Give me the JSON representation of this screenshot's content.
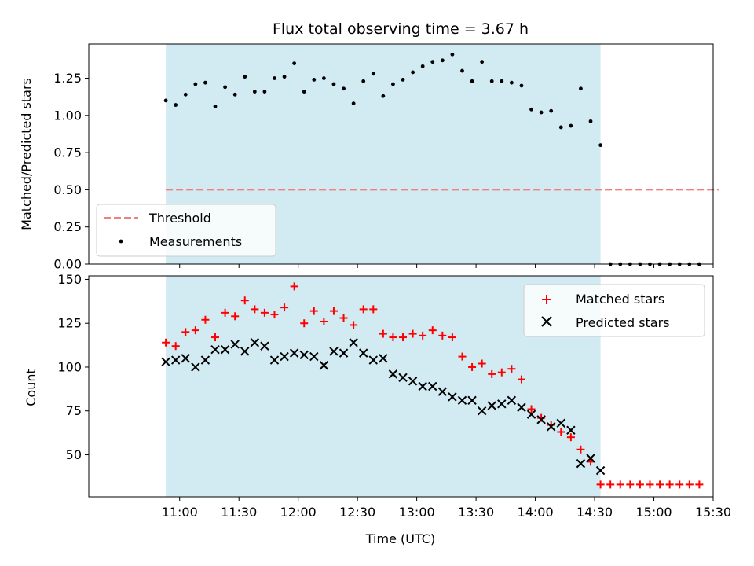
{
  "chart_data": {
    "type": "scatter",
    "title": "Flux total observing time = 3.67 h",
    "xlabel": "Time (UTC)",
    "x_ticks": [
      "11:00",
      "11:30",
      "12:00",
      "12:30",
      "13:00",
      "13:30",
      "14:00",
      "14:30",
      "15:00",
      "15:30"
    ],
    "x_tick_minutes": [
      660,
      690,
      720,
      750,
      780,
      810,
      840,
      870,
      900,
      930
    ],
    "xlim_minutes": [
      614,
      930
    ],
    "observing_window_minutes": [
      653,
      873
    ],
    "top": {
      "ylabel": "Matched/Predicted stars",
      "ylim": [
        0,
        1.48
      ],
      "y_ticks": [
        0.0,
        0.25,
        0.5,
        0.75,
        1.0,
        1.25
      ],
      "y_tick_labels": [
        "0.00",
        "0.25",
        "0.50",
        "0.75",
        "1.00",
        "1.25"
      ],
      "threshold": {
        "name": "Threshold",
        "value": 0.5,
        "x_range_minutes": [
          653,
          933
        ],
        "color": "#f08080"
      },
      "measurements": {
        "name": "Measurements",
        "points": [
          [
            653,
            1.1
          ],
          [
            658,
            1.07
          ],
          [
            663,
            1.14
          ],
          [
            668,
            1.21
          ],
          [
            673,
            1.22
          ],
          [
            678,
            1.06
          ],
          [
            683,
            1.19
          ],
          [
            688,
            1.14
          ],
          [
            693,
            1.26
          ],
          [
            698,
            1.16
          ],
          [
            703,
            1.16
          ],
          [
            708,
            1.25
          ],
          [
            713,
            1.26
          ],
          [
            718,
            1.35
          ],
          [
            723,
            1.16
          ],
          [
            728,
            1.24
          ],
          [
            733,
            1.25
          ],
          [
            738,
            1.21
          ],
          [
            743,
            1.18
          ],
          [
            748,
            1.08
          ],
          [
            753,
            1.23
          ],
          [
            758,
            1.28
          ],
          [
            763,
            1.13
          ],
          [
            768,
            1.21
          ],
          [
            773,
            1.24
          ],
          [
            778,
            1.29
          ],
          [
            783,
            1.33
          ],
          [
            788,
            1.36
          ],
          [
            793,
            1.37
          ],
          [
            798,
            1.41
          ],
          [
            803,
            1.3
          ],
          [
            808,
            1.23
          ],
          [
            813,
            1.36
          ],
          [
            818,
            1.23
          ],
          [
            823,
            1.23
          ],
          [
            828,
            1.22
          ],
          [
            833,
            1.2
          ],
          [
            838,
            1.04
          ],
          [
            843,
            1.02
          ],
          [
            848,
            1.03
          ],
          [
            853,
            0.92
          ],
          [
            858,
            0.93
          ],
          [
            863,
            1.18
          ],
          [
            868,
            0.96
          ],
          [
            873,
            0.8
          ],
          [
            878,
            0.0
          ],
          [
            883,
            0.0
          ],
          [
            888,
            0.0
          ],
          [
            893,
            0.0
          ],
          [
            898,
            0.0
          ],
          [
            903,
            0.0
          ],
          [
            908,
            0.0
          ],
          [
            913,
            0.0
          ],
          [
            918,
            0.0
          ],
          [
            923,
            0.0
          ]
        ]
      }
    },
    "bottom": {
      "ylabel": "Count",
      "ylim": [
        26,
        152
      ],
      "y_ticks": [
        50,
        75,
        100,
        125,
        150
      ],
      "y_tick_labels": [
        "50",
        "75",
        "100",
        "125",
        "150"
      ],
      "series": [
        {
          "name": "Matched stars",
          "marker": "plus",
          "color": "#ff0000",
          "points": [
            [
              653,
              114
            ],
            [
              658,
              112
            ],
            [
              663,
              120
            ],
            [
              668,
              121
            ],
            [
              673,
              127
            ],
            [
              678,
              117
            ],
            [
              683,
              131
            ],
            [
              688,
              129
            ],
            [
              693,
              138
            ],
            [
              698,
              133
            ],
            [
              703,
              131
            ],
            [
              708,
              130
            ],
            [
              713,
              134
            ],
            [
              718,
              146
            ],
            [
              723,
              125
            ],
            [
              728,
              132
            ],
            [
              733,
              126
            ],
            [
              738,
              132
            ],
            [
              743,
              128
            ],
            [
              748,
              124
            ],
            [
              753,
              133
            ],
            [
              758,
              133
            ],
            [
              763,
              119
            ],
            [
              768,
              117
            ],
            [
              773,
              117
            ],
            [
              778,
              119
            ],
            [
              783,
              118
            ],
            [
              788,
              121
            ],
            [
              793,
              118
            ],
            [
              798,
              117
            ],
            [
              803,
              106
            ],
            [
              808,
              100
            ],
            [
              813,
              102
            ],
            [
              818,
              96
            ],
            [
              823,
              97
            ],
            [
              828,
              99
            ],
            [
              833,
              93
            ],
            [
              838,
              76
            ],
            [
              843,
              71
            ],
            [
              848,
              67
            ],
            [
              853,
              63
            ],
            [
              858,
              60
            ],
            [
              863,
              53
            ],
            [
              868,
              46
            ],
            [
              873,
              33
            ],
            [
              878,
              33
            ],
            [
              883,
              33
            ],
            [
              888,
              33
            ],
            [
              893,
              33
            ],
            [
              898,
              33
            ],
            [
              903,
              33
            ],
            [
              908,
              33
            ],
            [
              913,
              33
            ],
            [
              918,
              33
            ],
            [
              923,
              33
            ]
          ]
        },
        {
          "name": "Predicted stars",
          "marker": "x",
          "color": "#000000",
          "points": [
            [
              653,
              103
            ],
            [
              658,
              104
            ],
            [
              663,
              105
            ],
            [
              668,
              100
            ],
            [
              673,
              104
            ],
            [
              678,
              110
            ],
            [
              683,
              110
            ],
            [
              688,
              113
            ],
            [
              693,
              109
            ],
            [
              698,
              114
            ],
            [
              703,
              112
            ],
            [
              708,
              104
            ],
            [
              713,
              106
            ],
            [
              718,
              108
            ],
            [
              723,
              107
            ],
            [
              728,
              106
            ],
            [
              733,
              101
            ],
            [
              738,
              109
            ],
            [
              743,
              108
            ],
            [
              748,
              114
            ],
            [
              753,
              108
            ],
            [
              758,
              104
            ],
            [
              763,
              105
            ],
            [
              768,
              96
            ],
            [
              773,
              94
            ],
            [
              778,
              92
            ],
            [
              783,
              89
            ],
            [
              788,
              89
            ],
            [
              793,
              86
            ],
            [
              798,
              83
            ],
            [
              803,
              81
            ],
            [
              808,
              81
            ],
            [
              813,
              75
            ],
            [
              818,
              78
            ],
            [
              823,
              79
            ],
            [
              828,
              81
            ],
            [
              833,
              77
            ],
            [
              838,
              73
            ],
            [
              843,
              70
            ],
            [
              848,
              66
            ],
            [
              853,
              68
            ],
            [
              858,
              64
            ],
            [
              863,
              45
            ],
            [
              868,
              48
            ],
            [
              873,
              41
            ]
          ]
        }
      ]
    },
    "window_color": "#add8e6",
    "legend_top": {
      "placement": "lower-left",
      "entries": [
        "Threshold",
        "Measurements"
      ]
    },
    "legend_bottom": {
      "placement": "upper-right",
      "entries": [
        "Matched stars",
        "Predicted stars"
      ]
    }
  }
}
